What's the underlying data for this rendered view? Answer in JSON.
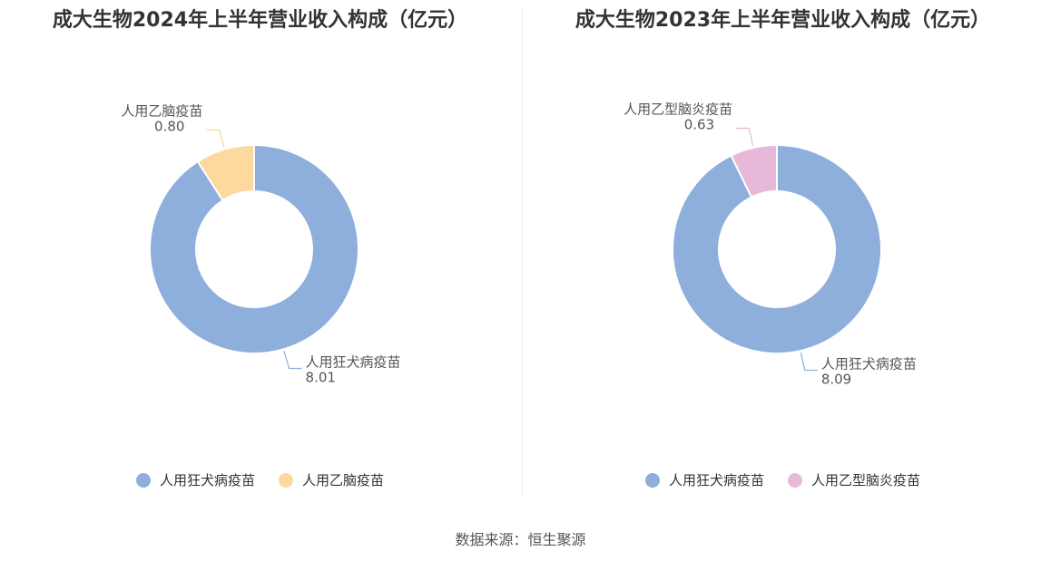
{
  "source": "数据来源：恒生聚源",
  "chart_data": [
    {
      "type": "pie",
      "title": "成大生物2024年上半年营业收入构成（亿元）",
      "categories": [
        "人用狂犬病疫苗",
        "人用乙脑疫苗"
      ],
      "values": [
        8.01,
        0.8
      ],
      "value_labels": [
        "8.01",
        "0.80"
      ],
      "colors": [
        "#8eaedc",
        "#fdd89f"
      ],
      "legend_position": "bottom"
    },
    {
      "type": "pie",
      "title": "成大生物2023年上半年营业收入构成（亿元）",
      "categories": [
        "人用狂犬病疫苗",
        "人用乙型脑炎疫苗"
      ],
      "values": [
        8.09,
        0.63
      ],
      "value_labels": [
        "8.09",
        "0.63"
      ],
      "colors": [
        "#8eaedc",
        "#e7b8d8"
      ],
      "legend_position": "bottom"
    }
  ]
}
